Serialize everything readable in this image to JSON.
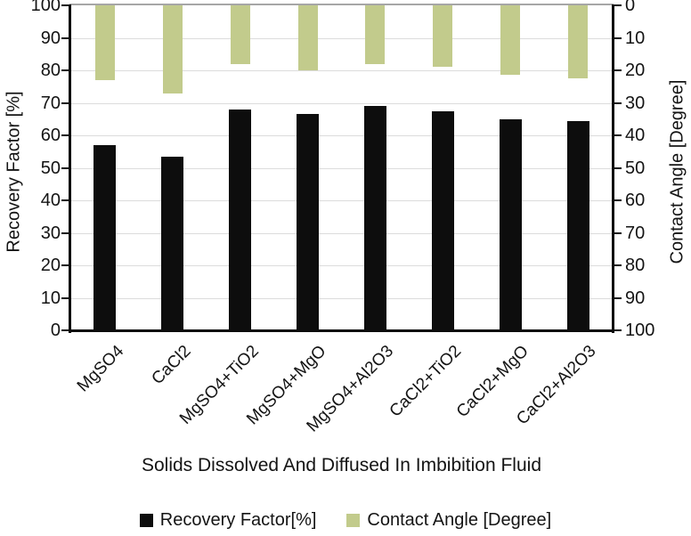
{
  "chart_data": {
    "type": "bar",
    "dual_axis": true,
    "categories": [
      "MgSO4",
      "CaCl2",
      "MgSO4+TiO2",
      "MgSO4+MgO",
      "MgSO4+Al2O3",
      "CaCl2+TiO2",
      "CaCl2+MgO",
      "CaCl2+Al2O3"
    ],
    "series": [
      {
        "name": "Recovery Factor[%]",
        "axis": "left",
        "color": "#0d0d0d",
        "values": [
          57,
          53.5,
          68,
          66.5,
          69,
          67.5,
          65,
          64.5
        ]
      },
      {
        "name": "Contact Angle [Degree]",
        "axis": "right",
        "color": "#c2cb8c",
        "values": [
          23,
          27,
          18,
          20,
          18,
          19,
          21.5,
          22.5
        ]
      }
    ],
    "left_axis": {
      "label": "Recovery Factor [%]",
      "min": 0,
      "max": 100,
      "step": 10,
      "direction": "up",
      "ticks": [
        0,
        10,
        20,
        30,
        40,
        50,
        60,
        70,
        80,
        90,
        100
      ]
    },
    "right_axis": {
      "label": "Contact Angle [Degree]",
      "min": 0,
      "max": 100,
      "step": 10,
      "direction": "down",
      "ticks": [
        0,
        10,
        20,
        30,
        40,
        50,
        60,
        70,
        80,
        90,
        100
      ]
    },
    "xlabel": "Solids Dissolved And Diffused In Imbibition Fluid",
    "legend": [
      "Recovery Factor[%]",
      "Contact Angle [Degree]"
    ],
    "grid": true,
    "gridline_color": "#dcdcdc",
    "top_border_color": "#a6a6a6",
    "axis_color": "#0d0d0d"
  }
}
